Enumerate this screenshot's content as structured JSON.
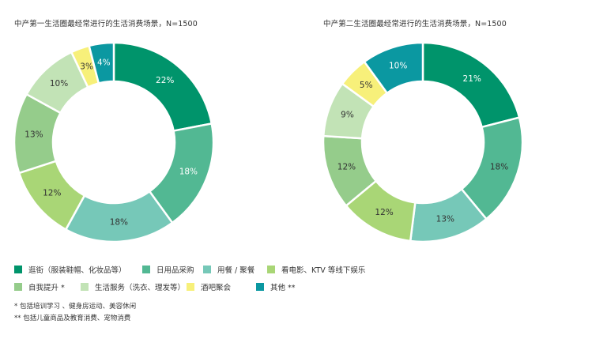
{
  "chart_data": [
    {
      "type": "pie",
      "title": "中产第一生活圈最经常进行的生活消费场景，N=1500",
      "categories": [
        "逛街（服装鞋帽、化妆品等）",
        "日用品采购",
        "用餐 / 聚餐",
        "看电影、KTV 等线下娱乐",
        "自我提升 *",
        "生活服务（洗衣、理发等）",
        "酒吧聚会",
        "其他 **"
      ],
      "values": [
        22,
        18,
        18,
        12,
        13,
        10,
        3,
        4
      ],
      "labels": [
        "22%",
        "18%",
        "18%",
        "12%",
        "13%",
        "10%",
        "3%",
        "4%"
      ]
    },
    {
      "type": "pie",
      "title": "中产第二生活圈最经常进行的生活消费场景，N=1500",
      "categories": [
        "逛街（服装鞋帽、化妆品等）",
        "日用品采购",
        "用餐 / 聚餐",
        "看电影、KTV 等线下娱乐",
        "自我提升 *",
        "生活服务（洗衣、理发等）",
        "酒吧聚会",
        "其他 **"
      ],
      "values": [
        21,
        18,
        13,
        12,
        12,
        9,
        5,
        10
      ],
      "labels": [
        "21%",
        "18%",
        "13%",
        "12%",
        "12%",
        "9%",
        "5%",
        "10%"
      ]
    }
  ],
  "legend": [
    {
      "label": "逛街（服装鞋帽、化妆品等）",
      "color": "#00946b"
    },
    {
      "label": "日用品采购",
      "color": "#52b893"
    },
    {
      "label": "用餐 / 聚餐",
      "color": "#76c8b8"
    },
    {
      "label": "看电影、KTV 等线下娱乐",
      "color": "#a9d676"
    },
    {
      "label": "自我提升 *",
      "color": "#95cc8b"
    },
    {
      "label": "生活服务（洗衣、理发等）",
      "color": "#c2e3b6"
    },
    {
      "label": "酒吧聚会",
      "color": "#f7f07a"
    },
    {
      "label": "其他 **",
      "color": "#0b98a1"
    }
  ],
  "notes": {
    "n1": "*  包括培训学习 、健身房运动、美容休闲",
    "n2": "**  包括儿童商品及教育消费、宠物消费"
  }
}
